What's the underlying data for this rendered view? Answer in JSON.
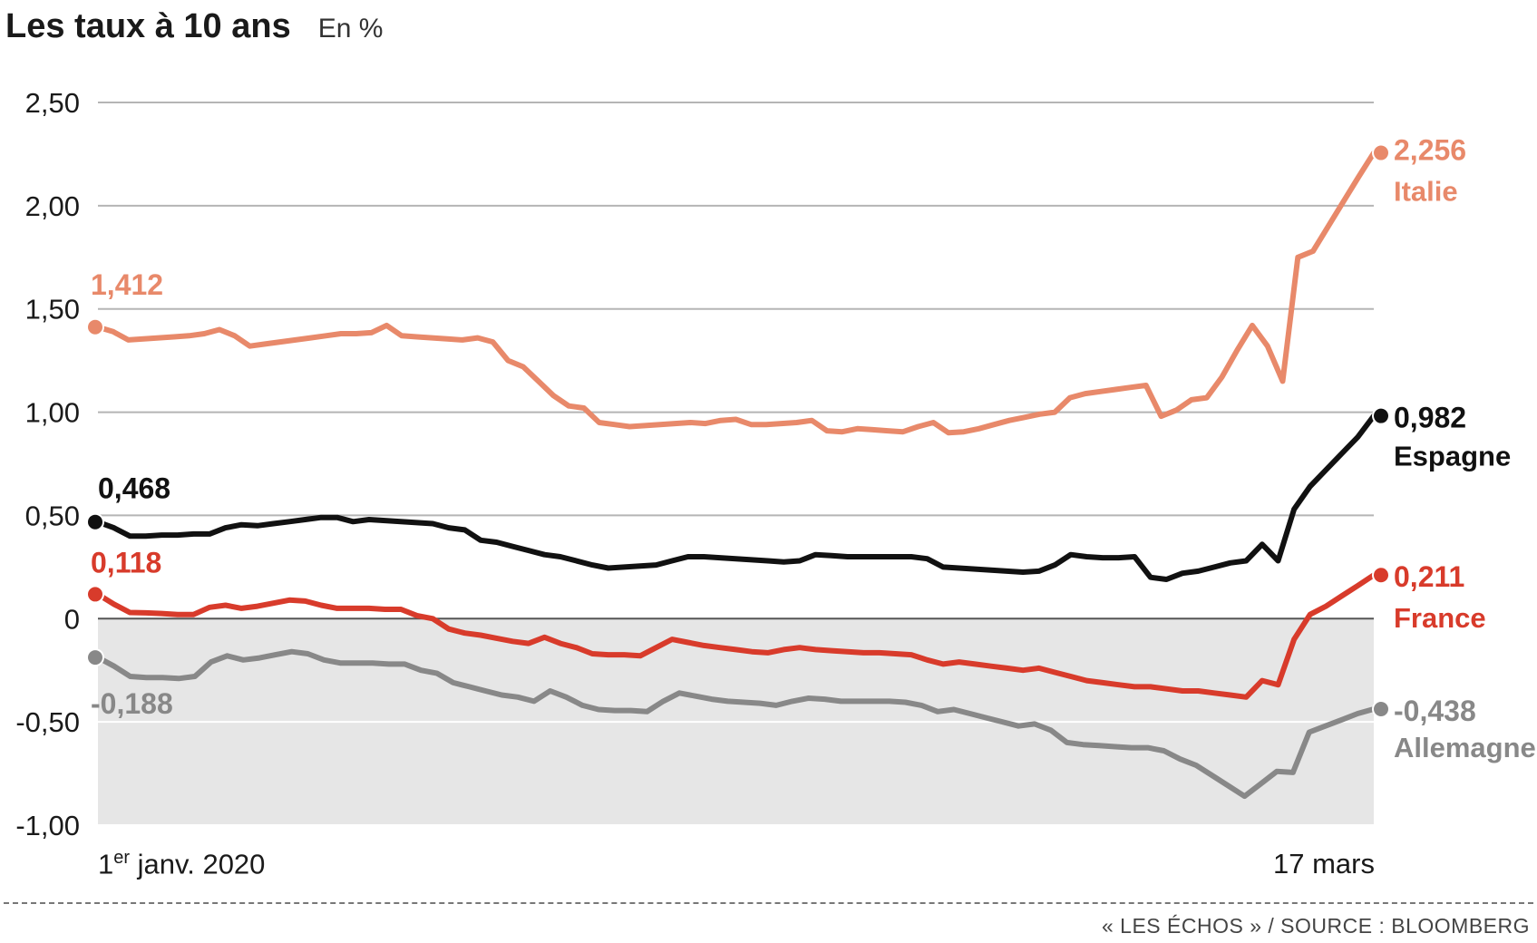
{
  "title": "Les taux à 10 ans",
  "subtitle": "En %",
  "source": "« LES ÉCHOS » / SOURCE : BLOOMBERG",
  "x_start_label": {
    "prefix": "1",
    "sup": "er",
    "rest": " janv. 2020"
  },
  "x_end_label": "17 mars",
  "chart_data": {
    "type": "line",
    "title": "Les taux à 10 ans",
    "ylabel": "En %",
    "ylim": [
      -1.0,
      2.5
    ],
    "yticks": [
      2.5,
      2.0,
      1.5,
      1.0,
      0.5,
      0,
      -0.5,
      -1.0
    ],
    "ytick_labels": [
      "2,50",
      "2,00",
      "1,50",
      "1,00",
      "0,50",
      "0",
      "-0,50",
      "-1,00"
    ],
    "negative_shading": true,
    "x_range": [
      "1er janv. 2020",
      "17 mars"
    ],
    "series": [
      {
        "name": "Italie",
        "color": "#E8896A",
        "start_label": "1,412",
        "end_label": "2,256",
        "values": [
          1.412,
          1.39,
          1.35,
          1.355,
          1.36,
          1.365,
          1.37,
          1.38,
          1.4,
          1.37,
          1.32,
          1.33,
          1.34,
          1.35,
          1.36,
          1.37,
          1.38,
          1.38,
          1.385,
          1.42,
          1.37,
          1.365,
          1.36,
          1.355,
          1.35,
          1.36,
          1.34,
          1.25,
          1.22,
          1.15,
          1.08,
          1.03,
          1.02,
          0.95,
          0.94,
          0.93,
          0.935,
          0.94,
          0.945,
          0.95,
          0.945,
          0.96,
          0.965,
          0.94,
          0.94,
          0.945,
          0.95,
          0.96,
          0.91,
          0.905,
          0.92,
          0.915,
          0.91,
          0.905,
          0.93,
          0.95,
          0.9,
          0.905,
          0.92,
          0.94,
          0.96,
          0.975,
          0.99,
          1.0,
          1.07,
          1.09,
          1.1,
          1.11,
          1.12,
          1.13,
          0.98,
          1.01,
          1.06,
          1.07,
          1.17,
          1.3,
          1.42,
          1.32,
          1.15,
          1.75,
          1.78,
          1.9,
          2.02,
          2.14,
          2.256
        ]
      },
      {
        "name": "Espagne",
        "color": "#111111",
        "start_label": "0,468",
        "end_label": "0,982",
        "values": [
          0.468,
          0.44,
          0.4,
          0.4,
          0.405,
          0.405,
          0.41,
          0.41,
          0.44,
          0.455,
          0.45,
          0.46,
          0.47,
          0.48,
          0.49,
          0.49,
          0.47,
          0.48,
          0.475,
          0.47,
          0.465,
          0.46,
          0.44,
          0.43,
          0.38,
          0.37,
          0.35,
          0.33,
          0.31,
          0.3,
          0.28,
          0.26,
          0.245,
          0.25,
          0.255,
          0.26,
          0.28,
          0.3,
          0.3,
          0.295,
          0.29,
          0.285,
          0.28,
          0.275,
          0.28,
          0.31,
          0.305,
          0.3,
          0.3,
          0.3,
          0.3,
          0.3,
          0.29,
          0.25,
          0.245,
          0.24,
          0.235,
          0.23,
          0.225,
          0.23,
          0.26,
          0.31,
          0.3,
          0.295,
          0.295,
          0.3,
          0.2,
          0.19,
          0.22,
          0.23,
          0.25,
          0.27,
          0.28,
          0.36,
          0.28,
          0.53,
          0.64,
          0.72,
          0.8,
          0.88,
          0.982
        ]
      },
      {
        "name": "France",
        "color": "#D83B2B",
        "start_label": "0,118",
        "end_label": "0,211",
        "values": [
          0.118,
          0.07,
          0.03,
          0.028,
          0.025,
          0.02,
          0.02,
          0.055,
          0.065,
          0.05,
          0.06,
          0.075,
          0.09,
          0.085,
          0.065,
          0.05,
          0.05,
          0.05,
          0.045,
          0.045,
          0.015,
          0.0,
          -0.05,
          -0.07,
          -0.08,
          -0.095,
          -0.11,
          -0.12,
          -0.09,
          -0.12,
          -0.14,
          -0.17,
          -0.175,
          -0.175,
          -0.18,
          -0.14,
          -0.1,
          -0.115,
          -0.13,
          -0.14,
          -0.15,
          -0.16,
          -0.165,
          -0.15,
          -0.14,
          -0.15,
          -0.155,
          -0.16,
          -0.165,
          -0.165,
          -0.17,
          -0.175,
          -0.2,
          -0.22,
          -0.21,
          -0.22,
          -0.23,
          -0.24,
          -0.25,
          -0.24,
          -0.26,
          -0.28,
          -0.3,
          -0.31,
          -0.32,
          -0.33,
          -0.33,
          -0.34,
          -0.35,
          -0.35,
          -0.36,
          -0.37,
          -0.38,
          -0.3,
          -0.32,
          -0.1,
          0.02,
          0.06,
          0.11,
          0.16,
          0.211
        ]
      },
      {
        "name": "Allemagne",
        "color": "#888888",
        "start_label": "-0,188",
        "end_label": "-0,438",
        "values": [
          -0.188,
          -0.23,
          -0.28,
          -0.285,
          -0.285,
          -0.29,
          -0.28,
          -0.21,
          -0.18,
          -0.2,
          -0.19,
          -0.175,
          -0.16,
          -0.17,
          -0.2,
          -0.215,
          -0.215,
          -0.215,
          -0.22,
          -0.22,
          -0.25,
          -0.265,
          -0.31,
          -0.33,
          -0.35,
          -0.37,
          -0.38,
          -0.4,
          -0.35,
          -0.38,
          -0.42,
          -0.44,
          -0.445,
          -0.445,
          -0.45,
          -0.4,
          -0.36,
          -0.375,
          -0.39,
          -0.4,
          -0.405,
          -0.41,
          -0.42,
          -0.4,
          -0.385,
          -0.39,
          -0.4,
          -0.4,
          -0.4,
          -0.4,
          -0.405,
          -0.42,
          -0.45,
          -0.44,
          -0.46,
          -0.48,
          -0.5,
          -0.52,
          -0.51,
          -0.54,
          -0.6,
          -0.61,
          -0.615,
          -0.62,
          -0.625,
          -0.625,
          -0.64,
          -0.68,
          -0.71,
          -0.76,
          -0.81,
          -0.86,
          -0.8,
          -0.74,
          -0.745,
          -0.55,
          -0.52,
          -0.49,
          -0.46,
          -0.438
        ]
      }
    ]
  }
}
